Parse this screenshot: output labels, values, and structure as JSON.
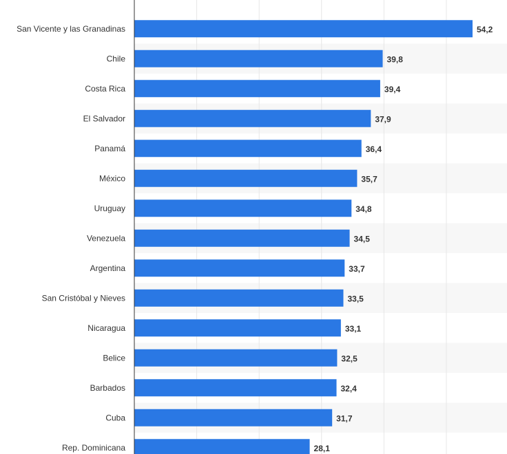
{
  "chart_data": {
    "type": "bar",
    "orientation": "horizontal",
    "categories": [
      "San Vicente y las Granadinas",
      "Chile",
      "Costa Rica",
      "El Salvador",
      "Panamá",
      "México",
      "Uruguay",
      "Venezuela",
      "Argentina",
      "San Cristóbal y Nieves",
      "Nicaragua",
      "Belice",
      "Barbados",
      "Cuba",
      "Rep. Dominicana"
    ],
    "values": [
      54.2,
      39.8,
      39.4,
      37.9,
      36.4,
      35.7,
      34.8,
      34.5,
      33.7,
      33.5,
      33.1,
      32.5,
      32.4,
      31.7,
      28.1
    ],
    "value_labels": [
      "54,2",
      "39,8",
      "39,4",
      "37,9",
      "36,4",
      "35,7",
      "34,8",
      "34,5",
      "33,7",
      "33,5",
      "33,1",
      "32,5",
      "32,4",
      "31,7",
      "28,1"
    ],
    "title": "",
    "xlabel": "",
    "ylabel": "",
    "xlim": [
      0,
      60
    ],
    "grid": true,
    "legend": "none",
    "bar_color": "#2a78e4",
    "alt_row_color": "#f7f7f7",
    "grid_color": "#e6e6e6",
    "axis_color": "#333333",
    "label_color": "#333333"
  }
}
